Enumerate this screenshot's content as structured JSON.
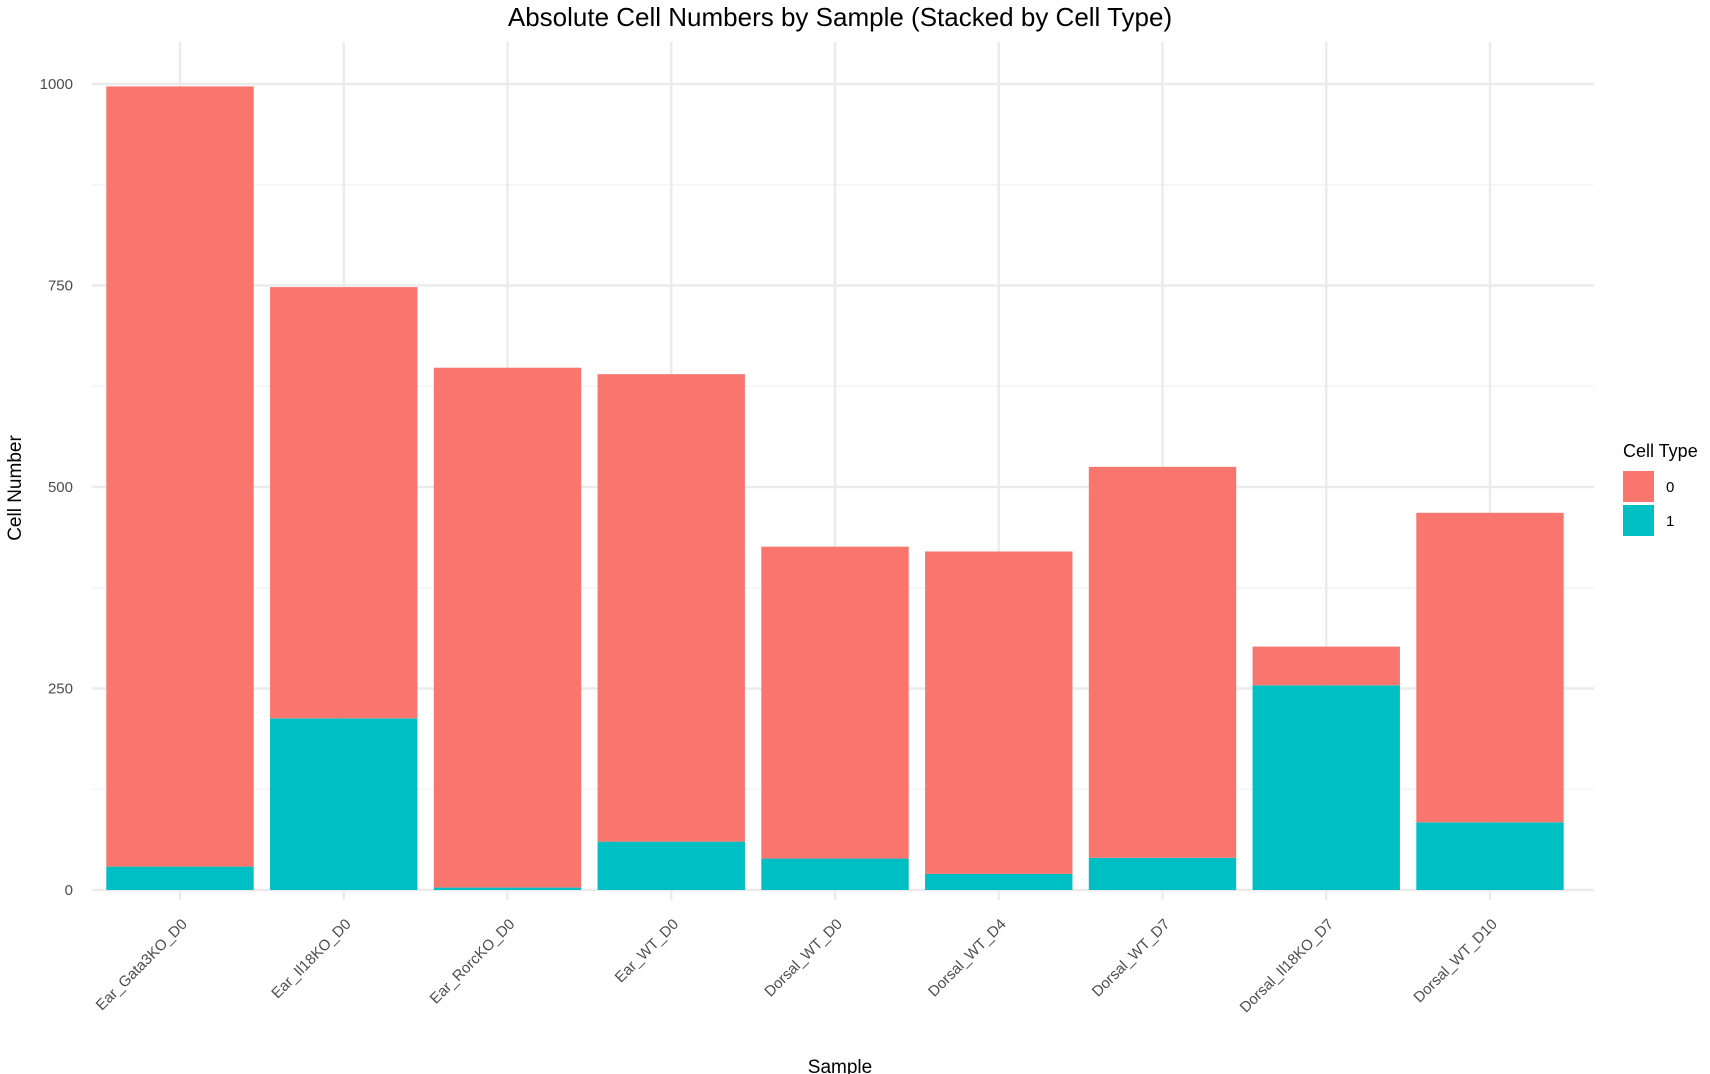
{
  "chart_data": {
    "type": "bar",
    "stacked": true,
    "title": "Absolute Cell Numbers by Sample (Stacked by Cell Type)",
    "xlabel": "Sample",
    "ylabel": "Cell Number",
    "ylim": [
      0,
      1000
    ],
    "yticks": [
      "0",
      "250",
      "500",
      "750",
      "1000"
    ],
    "grid": true,
    "legend": {
      "title": "Cell Type",
      "position": "right"
    },
    "categories": [
      "Ear_Gata3KO_D0",
      "Ear_Il18KO_D0",
      "Ear_RorcKO_D0",
      "Ear_WT_D0",
      "Dorsal_WT_D0",
      "Dorsal_WT_D4",
      "Dorsal_WT_D7",
      "Dorsal_Il18KO_D7",
      "Dorsal_WT_D10"
    ],
    "series": [
      {
        "name": "0",
        "color": "#F8766D",
        "values": [
          968,
          535,
          645,
          580,
          387,
          400,
          485,
          48,
          384
        ]
      },
      {
        "name": "1",
        "color": "#00BFC4",
        "values": [
          29,
          213,
          3,
          60,
          39,
          20,
          40,
          254,
          84
        ]
      }
    ]
  }
}
